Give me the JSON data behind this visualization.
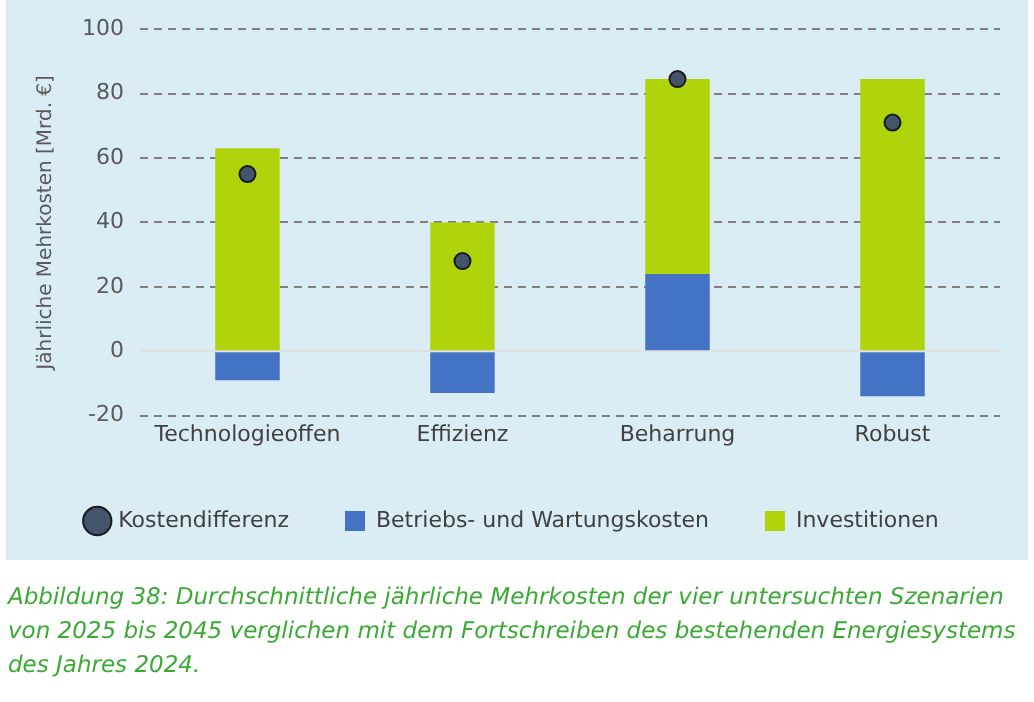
{
  "chart_data": {
    "type": "bar",
    "stacked": true,
    "ylabel": "Jährliche Mehrkosten [Mrd. €]",
    "categories": [
      "Technologieoffen",
      "Effizienz",
      "Beharrung",
      "Robust"
    ],
    "series": [
      {
        "name": "Betriebs- und Wartungskosten",
        "color": "#4472c4",
        "values": [
          -9,
          -13,
          24,
          -14
        ]
      },
      {
        "name": "Investitionen",
        "color": "#b0d40c",
        "values": [
          63,
          40,
          60.5,
          84.5
        ]
      },
      {
        "name": "Kostendifferenz",
        "type": "scatter",
        "color": "#44546a",
        "marker": "circle",
        "x": [
          "Technologieoffen",
          "Effizienz",
          "Beharrung",
          "Robust"
        ],
        "values": [
          55,
          28,
          84.5,
          71
        ]
      }
    ],
    "ylim": [
      -20,
      100
    ],
    "yticks": [
      -20,
      0,
      20,
      40,
      60,
      80,
      100
    ],
    "grid": "y",
    "legend": "bottom",
    "annotations": [
      "Abbildung 38: Durchschnittliche jährliche Mehrkosten der vier untersuchten Szenarien von 2025 bis 2045 verglichen mit dem Fortschreiben des bestehenden Energiesystems des Jahres 2024."
    ]
  }
}
